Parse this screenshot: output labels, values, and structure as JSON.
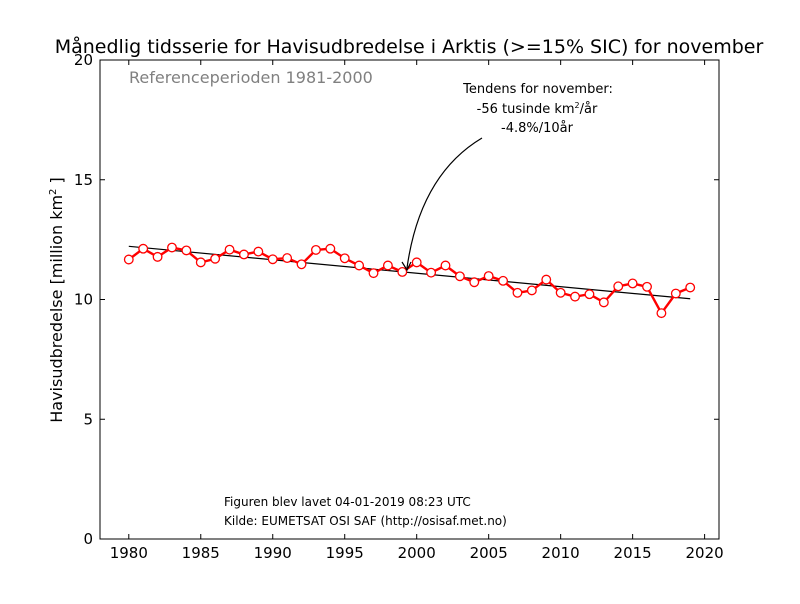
{
  "chart_data": {
    "type": "line",
    "title": "Månedlig tidsserie for Havisudbredelse i Arktis (>=15% SIC) for november",
    "xlabel": "",
    "ylabel": "Havisudbredelse [million km",
    "ylabel_sup": "2",
    "ylabel_end": " ]",
    "xlim": [
      1978,
      2021
    ],
    "ylim": [
      0,
      20
    ],
    "xticks": [
      1980,
      1985,
      1990,
      1995,
      2000,
      2005,
      2010,
      2015,
      2020
    ],
    "yticks": [
      0,
      5,
      10,
      15,
      20
    ],
    "grid": false,
    "series": [
      {
        "color": "#ff0000",
        "marker": "open-circle",
        "x": [
          1980,
          1981,
          1982,
          1983,
          1984,
          1985,
          1986,
          1987,
          1988,
          1989,
          1990,
          1991,
          1992,
          1993,
          1994,
          1995,
          1996,
          1997,
          1998,
          1999,
          2000,
          2001,
          2002,
          2003,
          2004,
          2005,
          2006,
          2007,
          2008,
          2009,
          2010,
          2011,
          2012,
          2013,
          2014,
          2015,
          2016,
          2017,
          2018,
          2019
        ],
        "y": [
          11.67,
          12.12,
          11.78,
          12.17,
          12.05,
          11.55,
          11.7,
          12.08,
          11.88,
          12.0,
          11.68,
          11.73,
          11.47,
          12.07,
          12.12,
          11.72,
          11.42,
          11.1,
          11.42,
          11.15,
          11.55,
          11.12,
          11.42,
          10.97,
          10.72,
          10.98,
          10.78,
          10.28,
          10.38,
          10.83,
          10.28,
          10.12,
          10.22,
          9.88,
          10.55,
          10.67,
          10.53,
          9.43,
          10.25,
          10.5
        ]
      }
    ],
    "trend": {
      "color": "#000000",
      "x": [
        1980,
        2019
      ],
      "y": [
        12.22,
        10.03
      ],
      "label_lines": [
        "Tendens for november:",
        "-56 tusinde km",
        "/år",
        "-4.8%/10år"
      ],
      "label_sup": "2",
      "arrow_target": [
        1999.6,
        11.2
      ]
    },
    "annotations": {
      "reference_period": "Referenceperioden 1981-2000",
      "created": "Figuren blev lavet 04-01-2019 08:23 UTC",
      "source": "Kilde: EUMETSAT OSI SAF (http://osisaf.met.no)"
    },
    "colors": {
      "series": "#ff0000",
      "trend": "#000000",
      "reference_text": "#808080"
    }
  }
}
